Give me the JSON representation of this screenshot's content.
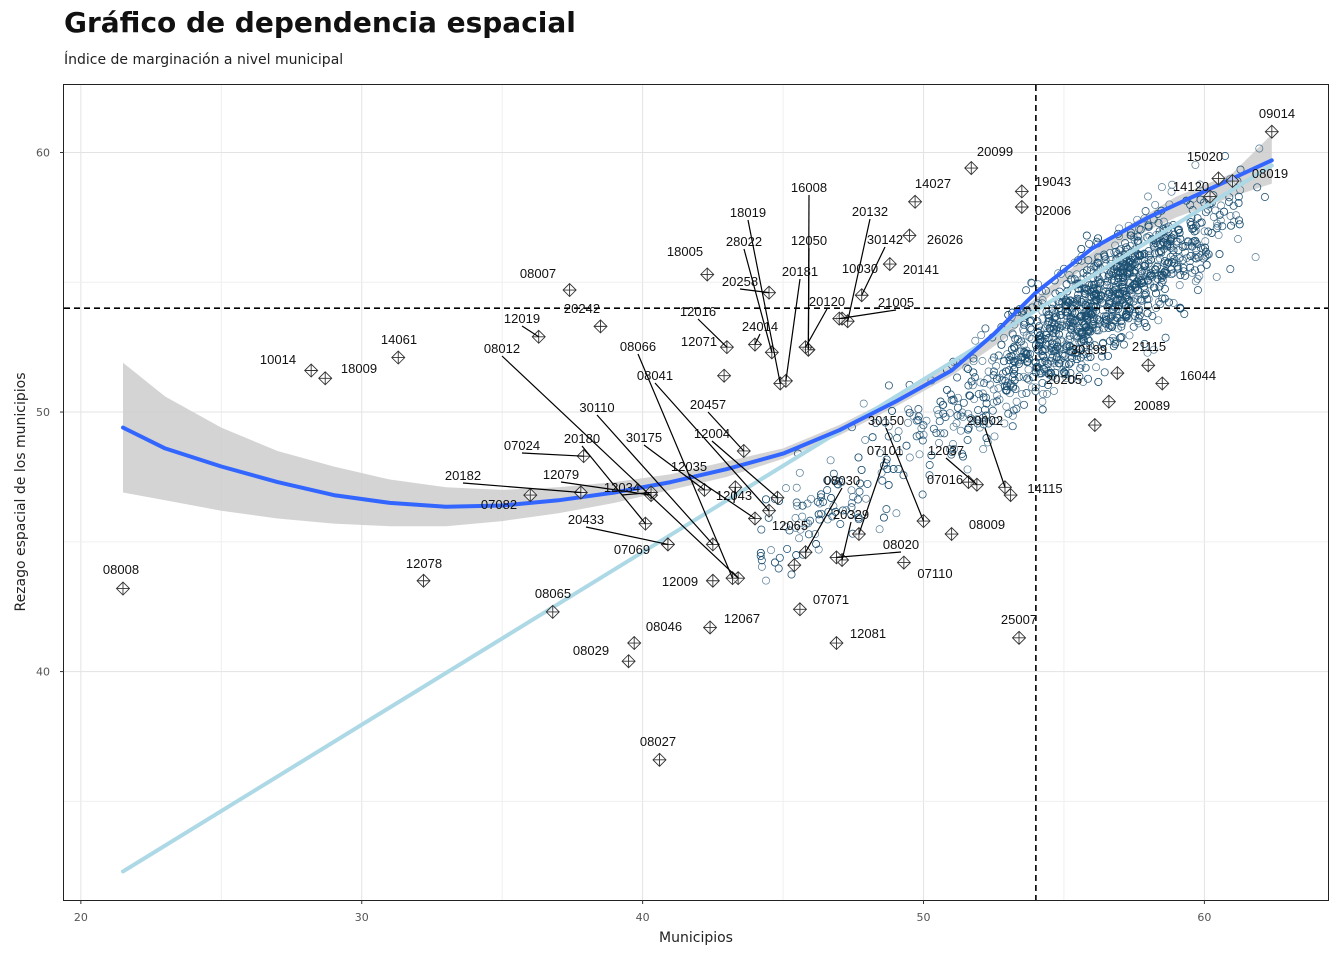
{
  "title": "Gráfico de dependencia espacial",
  "subtitle": "Índice de marginación a nivel municipal",
  "chart_data": {
    "type": "scatter",
    "xlabel": "Municipios",
    "ylabel": "Rezago espacial de los municipios",
    "xlim": [
      19.4,
      64.4
    ],
    "ylim": [
      31.2,
      62.6
    ],
    "xticks": [
      20,
      30,
      40,
      50,
      60
    ],
    "yticks": [
      40,
      50,
      60
    ],
    "xtick_labels": [
      "20",
      "30",
      "40",
      "50",
      "60"
    ],
    "ytick_labels": [
      "40",
      "50",
      "60"
    ],
    "grid": true,
    "mean_x": 54.0,
    "mean_y": 54.0,
    "point_cloud": {
      "approx_count": 2400,
      "x_range": [
        40,
        62.5
      ],
      "y_range": [
        43,
        61
      ],
      "color": "#1b4f72"
    },
    "loess_curve": [
      [
        21.5,
        49.4
      ],
      [
        23,
        48.6
      ],
      [
        25,
        47.9
      ],
      [
        27,
        47.3
      ],
      [
        29,
        46.8
      ],
      [
        31,
        46.5
      ],
      [
        33,
        46.35
      ],
      [
        35,
        46.4
      ],
      [
        37,
        46.6
      ],
      [
        39,
        46.9
      ],
      [
        41,
        47.3
      ],
      [
        43,
        47.8
      ],
      [
        45,
        48.4
      ],
      [
        47,
        49.3
      ],
      [
        49,
        50.4
      ],
      [
        51,
        51.6
      ],
      [
        52.5,
        53.0
      ],
      [
        54,
        54.6
      ],
      [
        56,
        56.3
      ],
      [
        58,
        57.5
      ],
      [
        60,
        58.5
      ],
      [
        62.4,
        59.7
      ]
    ],
    "confidence_band": {
      "upper": [
        [
          21.5,
          51.9
        ],
        [
          23,
          50.6
        ],
        [
          25,
          49.4
        ],
        [
          27,
          48.5
        ],
        [
          29,
          47.9
        ],
        [
          31,
          47.4
        ],
        [
          33,
          47.1
        ],
        [
          35,
          47.0
        ],
        [
          37,
          47.1
        ],
        [
          39,
          47.3
        ],
        [
          41,
          47.6
        ],
        [
          43,
          48.1
        ],
        [
          45,
          48.6
        ],
        [
          47,
          49.5
        ],
        [
          49,
          50.6
        ],
        [
          51,
          51.8
        ],
        [
          53,
          53.5
        ],
        [
          55,
          55.3
        ],
        [
          57,
          57.0
        ],
        [
          59,
          58.3
        ],
        [
          61,
          59.2
        ],
        [
          62.4,
          60.7
        ]
      ],
      "lower": [
        [
          21.5,
          46.9
        ],
        [
          23,
          46.6
        ],
        [
          25,
          46.2
        ],
        [
          27,
          45.9
        ],
        [
          29,
          45.7
        ],
        [
          31,
          45.6
        ],
        [
          33,
          45.6
        ],
        [
          35,
          45.8
        ],
        [
          37,
          46.1
        ],
        [
          39,
          46.5
        ],
        [
          41,
          47.0
        ],
        [
          43,
          47.5
        ],
        [
          45,
          48.2
        ],
        [
          47,
          49.1
        ],
        [
          49,
          50.2
        ],
        [
          51,
          51.4
        ],
        [
          53,
          52.9
        ],
        [
          55,
          55.0
        ],
        [
          57,
          56.5
        ],
        [
          59,
          57.5
        ],
        [
          61,
          58.3
        ],
        [
          62.4,
          58.8
        ]
      ]
    },
    "linear_fit": {
      "x": [
        21.5,
        62.4
      ],
      "y": [
        32.3,
        59.5
      ]
    },
    "colors": {
      "loess": "#3366ff",
      "linear": "#add8e6",
      "band": "#cccccc",
      "points": "#1b4f72",
      "outliers": "#333333"
    },
    "labeled_points": [
      {
        "id": "09014",
        "x": 62.4,
        "y": 60.8,
        "label": "09014"
      },
      {
        "id": "15020",
        "x": 60.5,
        "y": 59.0,
        "label": "15020"
      },
      {
        "id": "08019",
        "x": 61.0,
        "y": 58.9,
        "label": "08019"
      },
      {
        "id": "14120",
        "x": 60.2,
        "y": 58.3,
        "label": "14120"
      },
      {
        "id": "20099",
        "x": 51.7,
        "y": 59.4,
        "label": "20099"
      },
      {
        "id": "19043",
        "x": 53.5,
        "y": 58.5,
        "label": "19043"
      },
      {
        "id": "02006",
        "x": 53.5,
        "y": 57.9,
        "label": "02006"
      },
      {
        "id": "14027",
        "x": 49.7,
        "y": 58.1,
        "label": "14027"
      },
      {
        "id": "16008",
        "x": 45.9,
        "y": 52.4,
        "label": "16008"
      },
      {
        "id": "20132",
        "x": 47.3,
        "y": 53.5,
        "label": "20132"
      },
      {
        "id": "18019",
        "x": 44.9,
        "y": 51.1,
        "label": "18019"
      },
      {
        "id": "12050",
        "x": 45.9,
        "y": 52.4,
        "label": "12050"
      },
      {
        "id": "30142",
        "x": 47.8,
        "y": 54.5,
        "label": "30142"
      },
      {
        "id": "26026",
        "x": 49.5,
        "y": 56.8,
        "label": "26026"
      },
      {
        "id": "28022",
        "x": 44.6,
        "y": 52.3,
        "label": "28022"
      },
      {
        "id": "18005",
        "x": 42.3,
        "y": 55.3,
        "label": "18005"
      },
      {
        "id": "10030",
        "x": 47.1,
        "y": 53.6,
        "label": "10030"
      },
      {
        "id": "20141",
        "x": 48.8,
        "y": 55.7,
        "label": "20141"
      },
      {
        "id": "20181",
        "x": 45.1,
        "y": 51.2,
        "label": "20181"
      },
      {
        "id": "20258",
        "x": 44.5,
        "y": 54.6,
        "label": "20258"
      },
      {
        "id": "08007",
        "x": 37.4,
        "y": 54.7,
        "label": "08007"
      },
      {
        "id": "20242",
        "x": 38.5,
        "y": 53.3,
        "label": "20242"
      },
      {
        "id": "20120",
        "x": 45.8,
        "y": 52.5,
        "label": "20120"
      },
      {
        "id": "21005",
        "x": 47.0,
        "y": 53.6,
        "label": "21005"
      },
      {
        "id": "12016",
        "x": 43.0,
        "y": 52.5,
        "label": "12016"
      },
      {
        "id": "24014",
        "x": 44.0,
        "y": 52.6,
        "label": "24014"
      },
      {
        "id": "12019",
        "x": 36.3,
        "y": 52.9,
        "label": "12019"
      },
      {
        "id": "14061",
        "x": 31.3,
        "y": 52.1,
        "label": "14061"
      },
      {
        "id": "10014",
        "x": 28.2,
        "y": 51.6,
        "label": "10014"
      },
      {
        "id": "18009",
        "x": 28.7,
        "y": 51.3,
        "label": "18009"
      },
      {
        "id": "08012",
        "x": 43.4,
        "y": 43.6,
        "label": "08012"
      },
      {
        "id": "08066",
        "x": 43.2,
        "y": 43.6,
        "label": "08066"
      },
      {
        "id": "12071",
        "x": 42.9,
        "y": 51.4,
        "label": "12071"
      },
      {
        "id": "08041",
        "x": 44.5,
        "y": 46.2,
        "label": "08041"
      },
      {
        "id": "30199",
        "x": 56.9,
        "y": 51.5,
        "label": "30199"
      },
      {
        "id": "21115",
        "x": 58.0,
        "y": 51.8,
        "label": "21115"
      },
      {
        "id": "16044",
        "x": 58.5,
        "y": 51.1,
        "label": "16044"
      },
      {
        "id": "20205",
        "x": 56.6,
        "y": 50.4,
        "label": "20205"
      },
      {
        "id": "20457",
        "x": 43.6,
        "y": 48.5,
        "label": "20457"
      },
      {
        "id": "30110",
        "x": 42.5,
        "y": 44.9,
        "label": "30110"
      },
      {
        "id": "20089",
        "x": 56.1,
        "y": 49.5,
        "label": "20089"
      },
      {
        "id": "12004",
        "x": 44.8,
        "y": 46.7,
        "label": "12004"
      },
      {
        "id": "07024",
        "x": 37.9,
        "y": 48.3,
        "label": "07024"
      },
      {
        "id": "20180",
        "x": 40.1,
        "y": 45.7,
        "label": "20180"
      },
      {
        "id": "30175",
        "x": 42.2,
        "y": 47.0,
        "label": "30175"
      },
      {
        "id": "30150",
        "x": 50.0,
        "y": 45.8,
        "label": "30150"
      },
      {
        "id": "20002",
        "x": 52.9,
        "y": 47.1,
        "label": "20002"
      },
      {
        "id": "12037",
        "x": 51.9,
        "y": 47.2,
        "label": "12037"
      },
      {
        "id": "07101",
        "x": 47.7,
        "y": 45.3,
        "label": "07101"
      },
      {
        "id": "12035",
        "x": 44.0,
        "y": 45.9,
        "label": "12035"
      },
      {
        "id": "20182",
        "x": 37.8,
        "y": 46.9,
        "label": "20182"
      },
      {
        "id": "12079",
        "x": 40.3,
        "y": 46.8,
        "label": "12079"
      },
      {
        "id": "07016",
        "x": 51.6,
        "y": 47.3,
        "label": "07016"
      },
      {
        "id": "14115",
        "x": 53.1,
        "y": 46.8,
        "label": "14115"
      },
      {
        "id": "08030",
        "x": 45.8,
        "y": 44.6,
        "label": "08030"
      },
      {
        "id": "12034",
        "x": 40.3,
        "y": 46.9,
        "label": "12034"
      },
      {
        "id": "07082",
        "x": 36.0,
        "y": 46.8,
        "label": "07082"
      },
      {
        "id": "12043",
        "x": 43.3,
        "y": 47.1,
        "label": "12043"
      },
      {
        "id": "20329",
        "x": 47.1,
        "y": 44.3,
        "label": "20329"
      },
      {
        "id": "20433",
        "x": 40.9,
        "y": 44.9,
        "label": "20433"
      },
      {
        "id": "12065",
        "x": 45.4,
        "y": 44.1,
        "label": "12065"
      },
      {
        "id": "08020",
        "x": 46.9,
        "y": 44.4,
        "label": "08020"
      },
      {
        "id": "08009",
        "x": 51.0,
        "y": 45.3,
        "label": "08009"
      },
      {
        "id": "07069",
        "x": 40.9,
        "y": 44.9,
        "label": "07069"
      },
      {
        "id": "07110",
        "x": 49.3,
        "y": 44.2,
        "label": "07110"
      },
      {
        "id": "08008",
        "x": 21.5,
        "y": 43.2,
        "label": "08008"
      },
      {
        "id": "12078",
        "x": 32.2,
        "y": 43.5,
        "label": "12078"
      },
      {
        "id": "12009",
        "x": 42.5,
        "y": 43.5,
        "label": "12009"
      },
      {
        "id": "07071",
        "x": 45.6,
        "y": 42.4,
        "label": "07071"
      },
      {
        "id": "08065",
        "x": 36.8,
        "y": 42.3,
        "label": "08065"
      },
      {
        "id": "12067",
        "x": 42.4,
        "y": 41.7,
        "label": "12067"
      },
      {
        "id": "25007",
        "x": 53.4,
        "y": 41.3,
        "label": "25007"
      },
      {
        "id": "08046",
        "x": 39.7,
        "y": 41.1,
        "label": "08046"
      },
      {
        "id": "12081",
        "x": 46.9,
        "y": 41.1,
        "label": "12081"
      },
      {
        "id": "08029",
        "x": 39.5,
        "y": 40.4,
        "label": "08029"
      },
      {
        "id": "08027",
        "x": 40.6,
        "y": 36.6,
        "label": "08027"
      }
    ]
  }
}
